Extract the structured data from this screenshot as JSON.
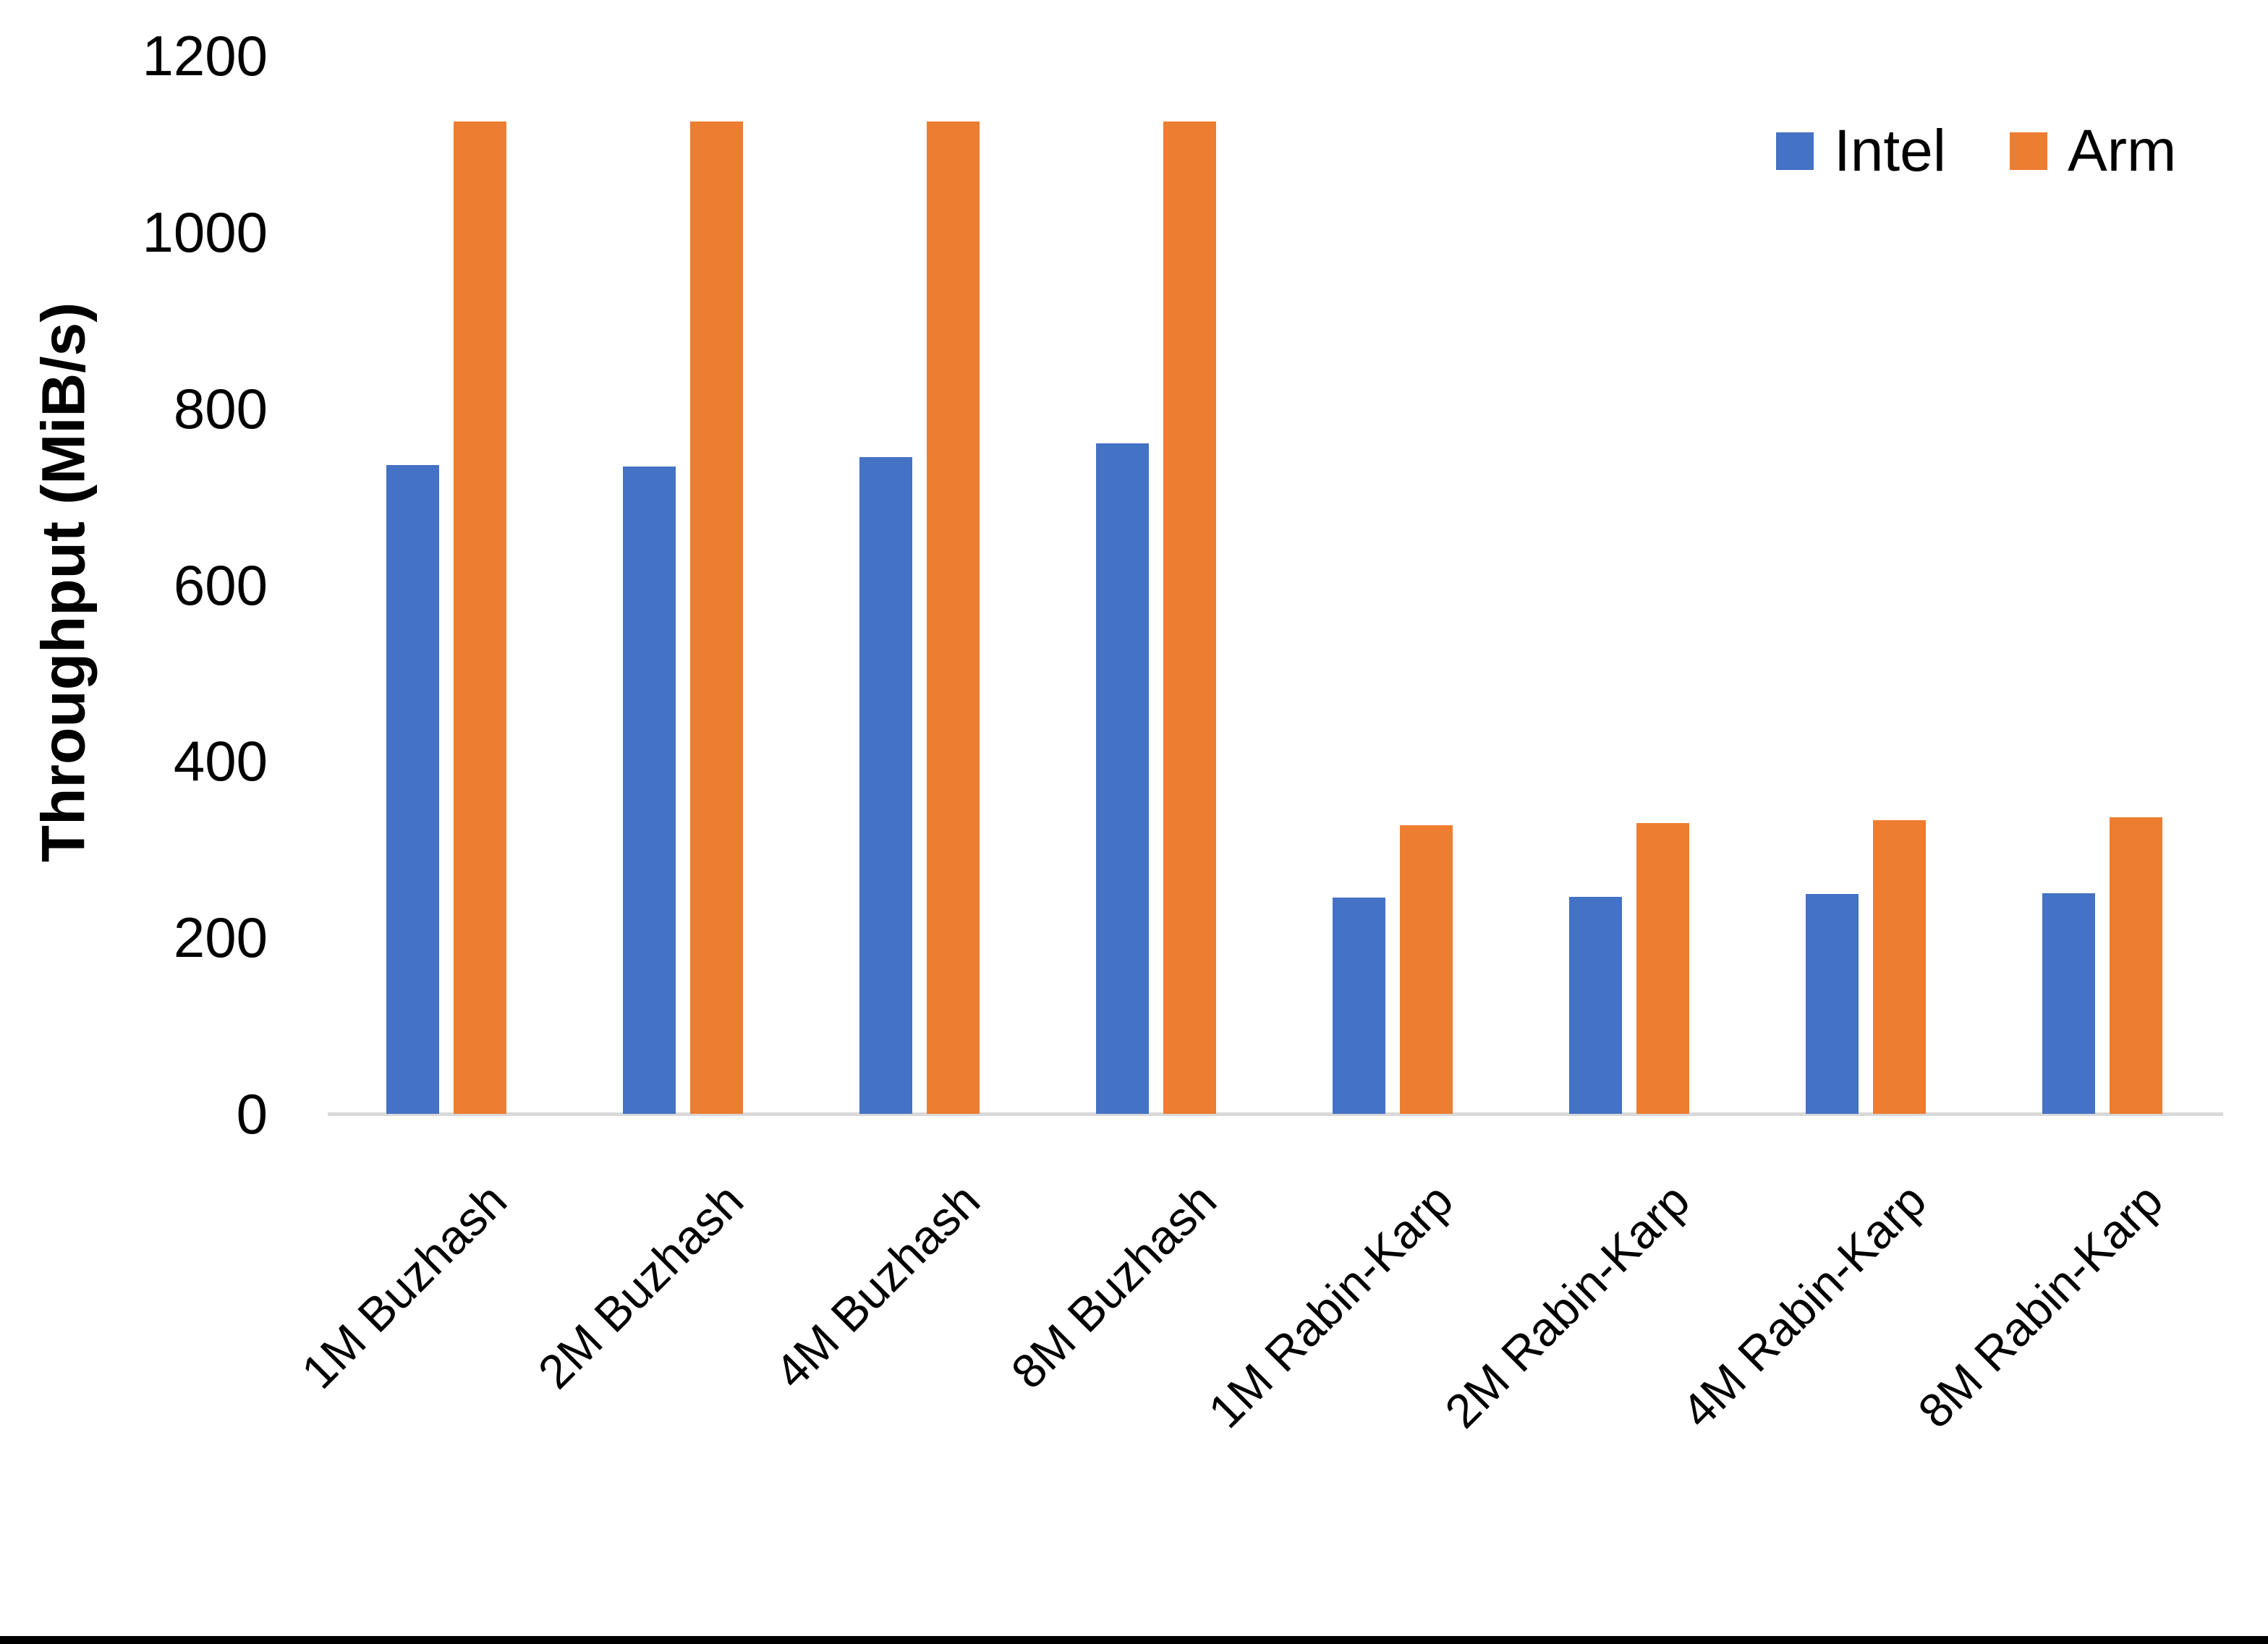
{
  "chart_data": {
    "type": "bar",
    "title": "",
    "xlabel": "",
    "ylabel": "Throughput (MiB/s)",
    "categories": [
      "1M Buzhash",
      "2M Buzhash",
      "4M Buzhash",
      "8M Buzhash",
      "1M Rabin-Karp",
      "2M Rabin-Karp",
      "4M Rabin-Karp",
      "8M Rabin-Karp"
    ],
    "series": [
      {
        "name": "Intel",
        "color": "#4472C4",
        "values": [
          736,
          734,
          745,
          760,
          245,
          246,
          249,
          250
        ]
      },
      {
        "name": "Arm",
        "color": "#ED7D31",
        "values": [
          1125,
          1125,
          1125,
          1125,
          327,
          330,
          333,
          336
        ]
      }
    ],
    "ylim": [
      0,
      1200
    ],
    "y_ticks": [
      0,
      200,
      400,
      600,
      800,
      1000,
      1200
    ],
    "grid": false,
    "legend_position": "top-right",
    "colors": {
      "axis_line": "#D9D9D9",
      "text": "#000000",
      "background": "#FFFFFF",
      "bottom_border": "#000000"
    }
  }
}
